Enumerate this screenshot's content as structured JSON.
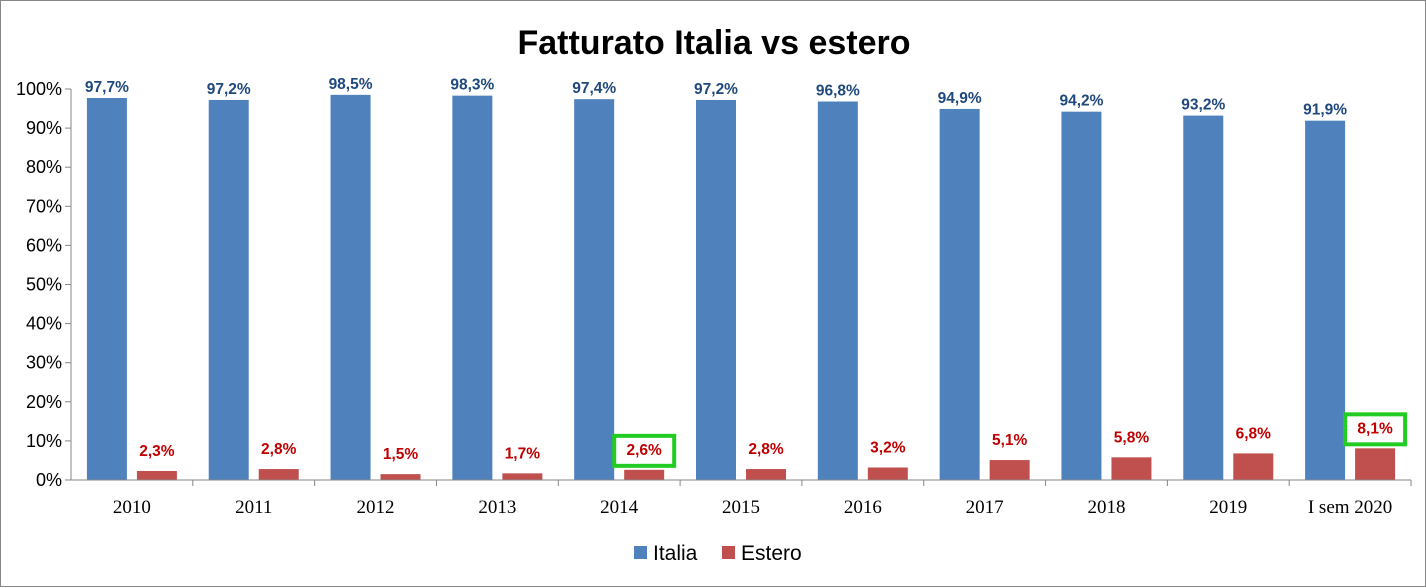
{
  "chart_data": {
    "type": "bar",
    "title": "Fatturato Italia vs estero",
    "categories": [
      "2010",
      "2011",
      "2012",
      "2013",
      "2014",
      "2015",
      "2016",
      "2017",
      "2018",
      "2019",
      "I sem 2020"
    ],
    "series": [
      {
        "name": "Italia",
        "color": "#4F81BD",
        "label_color": "#1F497D",
        "values": [
          97.7,
          97.2,
          98.5,
          98.3,
          97.4,
          97.2,
          96.8,
          94.9,
          94.2,
          93.2,
          91.9
        ],
        "labels": [
          "97,7%",
          "97,2%",
          "98,5%",
          "98,3%",
          "97,4%",
          "97,2%",
          "96,8%",
          "94,9%",
          "94,2%",
          "93,2%",
          "91,9%"
        ]
      },
      {
        "name": "Estero",
        "color": "#C0504D",
        "label_color": "#C00000",
        "values": [
          2.3,
          2.8,
          1.5,
          1.7,
          2.6,
          2.8,
          3.2,
          5.1,
          5.8,
          6.8,
          8.1
        ],
        "labels": [
          "2,3%",
          "2,8%",
          "1,5%",
          "1,7%",
          "2,6%",
          "2,8%",
          "3,2%",
          "5,1%",
          "5,8%",
          "6,8%",
          "8,1%"
        ]
      }
    ],
    "ylim": [
      0,
      100
    ],
    "yticks": [
      0,
      10,
      20,
      30,
      40,
      50,
      60,
      70,
      80,
      90,
      100
    ],
    "ytick_labels": [
      "0%",
      "10%",
      "20%",
      "30%",
      "40%",
      "50%",
      "60%",
      "70%",
      "80%",
      "90%",
      "100%"
    ],
    "xlabel": "",
    "ylabel": "",
    "grid": false,
    "legend_position": "bottom",
    "highlighted": {
      "series": "Estero",
      "categories": [
        "2014",
        "I sem 2020"
      ],
      "box_color": "#22CC22"
    }
  }
}
